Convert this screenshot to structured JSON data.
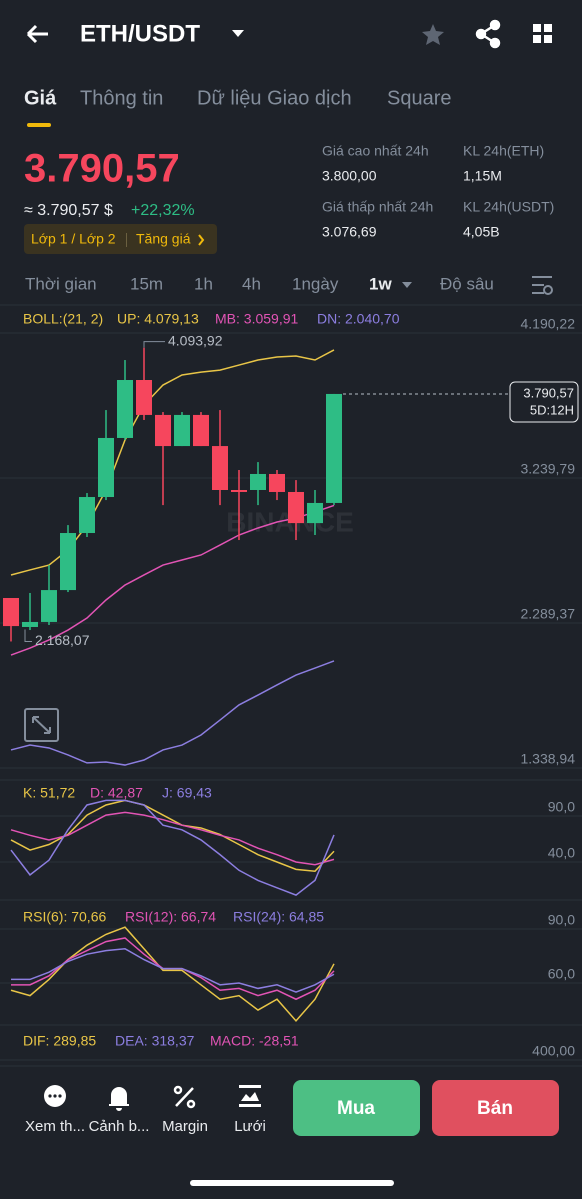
{
  "header": {
    "pair": "ETH/USDT"
  },
  "tabs": [
    "Giá",
    "Thông tin",
    "Dữ liệu Giao dịch",
    "Square"
  ],
  "price": {
    "last": "3.790,57",
    "usd": "≈ 3.790,57 $",
    "change": "+22,32%",
    "tags": [
      "Lớp 1 / Lớp 2",
      "Tăng giá"
    ]
  },
  "stats": [
    {
      "label": "Giá cao nhất 24h",
      "value": "3.800,00"
    },
    {
      "label": "KL 24h(ETH)",
      "value": "1,15M"
    },
    {
      "label": "Giá thấp nhất 24h",
      "value": "3.076,69"
    },
    {
      "label": "KL 24h(USDT)",
      "value": "4,05B"
    }
  ],
  "intervals": [
    "Thời gian",
    "15m",
    "1h",
    "4h",
    "1ngày",
    "1w",
    "Độ sâu"
  ],
  "chart_data": [
    {
      "type": "candlestick",
      "indicator": "BOLL:(21, 2)",
      "watermark": "BINANCE",
      "up_color": "#2ebd85",
      "down_color": "#f6465d",
      "grid": true,
      "open": [
        2453,
        2263,
        2296,
        2505,
        2879,
        3115,
        3502,
        3882,
        3653,
        3449,
        3653,
        3449,
        3161,
        3161,
        3266,
        3148,
        2944,
        3076
      ],
      "high": [
        2453,
        2486,
        2669,
        2931,
        3141,
        3685,
        4013,
        4093.92,
        3672,
        3672,
        3672,
        3685,
        3292,
        3344,
        3292,
        3226,
        3161,
        3790.57
      ],
      "low": [
        2168.07,
        2243,
        2276,
        2492,
        2853,
        3095,
        3489,
        3620,
        3062,
        3449,
        3449,
        3062,
        2833,
        3062,
        3095,
        2833,
        2866,
        3062
      ],
      "close": [
        2269,
        2296,
        2505,
        2879,
        3115,
        3502,
        3882,
        3653,
        3449,
        3653,
        3449,
        3161,
        3148,
        3266,
        3148,
        2944,
        3076,
        3790.57
      ],
      "series": [
        {
          "name": "UP: 4.079,13",
          "color": "#e8c547",
          "values": [
            2604,
            2637,
            2669,
            2768,
            2931,
            3161,
            3489,
            3718,
            3849,
            3915,
            3934,
            3947,
            3980,
            4013,
            4033,
            4039,
            4013,
            4079.13
          ]
        },
        {
          "name": "MB: 3.059,91",
          "color": "#e254b5",
          "values": [
            2079,
            2125,
            2178,
            2243,
            2322,
            2440,
            2538,
            2604,
            2669,
            2702,
            2735,
            2800,
            2866,
            2912,
            2951,
            2977,
            3017,
            3059.91
          ]
        },
        {
          "name": "DN: 2.040,70",
          "color": "#8c7ee0",
          "values": [
            1457,
            1489,
            1470,
            1424,
            1372,
            1378,
            1358,
            1391,
            1457,
            1489,
            1555,
            1653,
            1752,
            1817,
            1883,
            1948,
            1994,
            2040.7
          ]
        }
      ],
      "ylim": [
        1260,
        4354
      ],
      "yticks": [
        {
          "value": 4190.22,
          "label": "4.190,22"
        },
        {
          "value": 3239.79,
          "label": "3.239,79"
        },
        {
          "value": 2289.37,
          "label": "2.289,37"
        },
        {
          "value": 1338.94,
          "label": "1.338,94"
        }
      ],
      "annotations": [
        {
          "value": 4093.92,
          "label": "4.093,92"
        },
        {
          "value": 2168.07,
          "label": "2.168,07"
        }
      ],
      "last_price": {
        "value": 3790.57,
        "label": "3.790,57",
        "countdown": "5D:12H"
      }
    },
    {
      "type": "line",
      "ylim": [
        -1.3,
        123.7
      ],
      "yticks": [
        {
          "value": 90,
          "label": "90,0"
        },
        {
          "value": 40,
          "label": "40,0"
        }
      ],
      "series": [
        {
          "name": "K: 51,72",
          "color": "#e8c547",
          "values": [
            64,
            53,
            59,
            70,
            91,
            102,
            107,
            102,
            91,
            80,
            77,
            70,
            59,
            48,
            40,
            32,
            30,
            51.72
          ]
        },
        {
          "name": "D: 42,87",
          "color": "#e254b5",
          "values": [
            75,
            69,
            64,
            69,
            80,
            91,
            94,
            91,
            86,
            80,
            75,
            69,
            64,
            55,
            48,
            40,
            37,
            42.87
          ]
        },
        {
          "name": "J: 69,43",
          "color": "#8c7ee0",
          "values": [
            53,
            26,
            42,
            75,
            102,
            107,
            107,
            102,
            80,
            75,
            64,
            48,
            31,
            20,
            12,
            4,
            20,
            69.43
          ]
        }
      ]
    },
    {
      "type": "line",
      "ylim": [
        36.7,
        103.3
      ],
      "yticks": [
        {
          "value": 90,
          "label": "90,0"
        },
        {
          "value": 60,
          "label": "60,0"
        }
      ],
      "series": [
        {
          "name": "RSI(6): 70,66",
          "color": "#e8c547",
          "values": [
            56,
            53,
            62,
            73,
            81,
            87,
            91,
            79,
            67,
            67,
            59,
            51,
            53,
            45,
            51,
            39,
            51,
            70.66
          ]
        },
        {
          "name": "RSI(12): 66,74",
          "color": "#e254b5",
          "values": [
            59,
            59,
            64,
            73,
            78,
            83,
            85,
            76,
            68,
            68,
            63,
            56,
            57,
            53,
            56,
            51,
            56,
            66.74
          ]
        },
        {
          "name": "RSI(24): 64,85",
          "color": "#8c7ee0",
          "values": [
            62,
            62,
            66,
            72,
            76,
            78,
            79,
            73,
            68,
            68,
            64,
            59,
            60,
            57,
            59,
            55,
            59,
            64.85
          ]
        }
      ]
    },
    {
      "type": "line",
      "ylim": [
        300,
        1000
      ],
      "yticks": [
        {
          "value": 400,
          "label": "400,00"
        }
      ],
      "series": [
        {
          "name": "DIF: 289,85",
          "color": "#e8c547"
        },
        {
          "name": "DEA: 318,37",
          "color": "#8c7ee0"
        },
        {
          "name": "MACD: -28,51",
          "color": "#e254b5"
        }
      ]
    }
  ],
  "toolbar": {
    "items": [
      "Xem th...",
      "Cảnh b...",
      "Margin",
      "Lưới"
    ],
    "buy": "Mua",
    "sell": "Bán"
  }
}
